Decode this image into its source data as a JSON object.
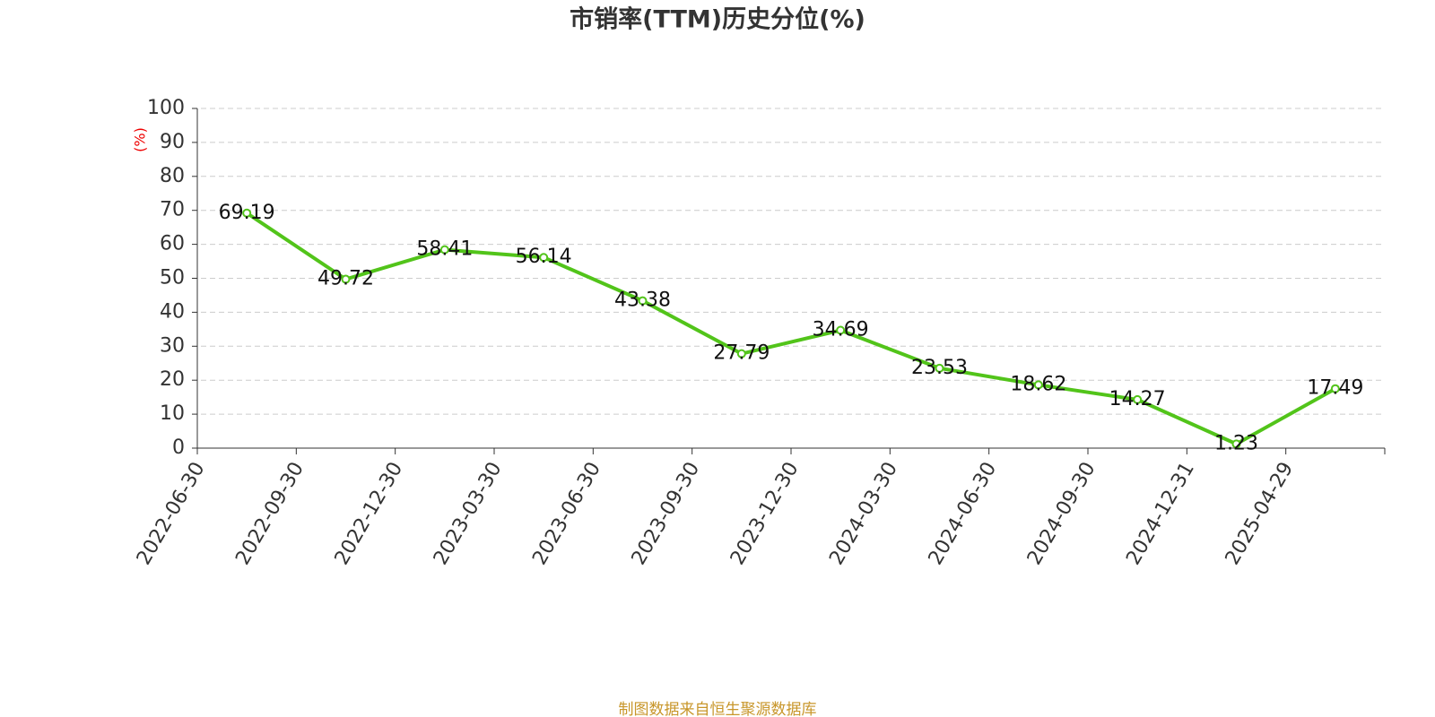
{
  "chart_data": {
    "type": "line",
    "title": "市销率(TTM)历史分位(%)",
    "y_label": "(%)",
    "categories": [
      "2022-06-30",
      "2022-09-30",
      "2022-12-30",
      "2023-03-30",
      "2023-06-30",
      "2023-09-30",
      "2023-12-30",
      "2024-03-30",
      "2024-06-30",
      "2024-09-30",
      "2024-12-31",
      "2025-04-29"
    ],
    "series": [
      {
        "name": "市销率(TTM)历史分位",
        "color": "#52c41a",
        "values": [
          69.19,
          49.72,
          58.41,
          56.14,
          43.38,
          27.79,
          34.69,
          23.53,
          18.62,
          14.27,
          1.23,
          17.49
        ]
      }
    ],
    "ylim": [
      0,
      100
    ],
    "yticks": [
      0,
      10,
      20,
      30,
      40,
      50,
      60,
      70,
      80,
      90,
      100
    ],
    "grid": true,
    "source": "制图数据来自恒生聚源数据库"
  }
}
